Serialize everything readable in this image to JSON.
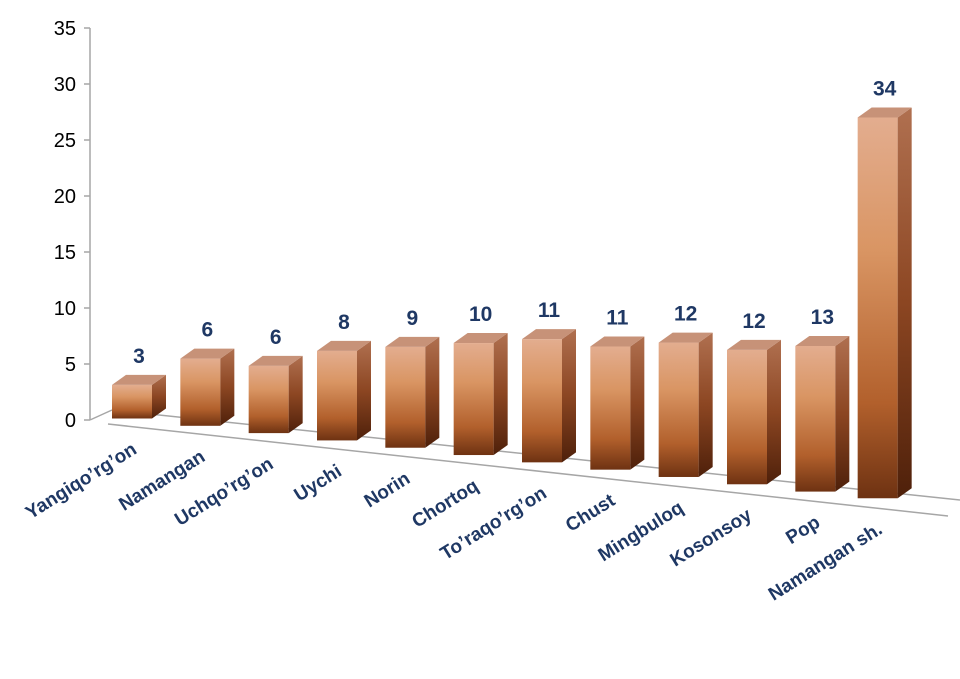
{
  "chart_data": {
    "type": "bar",
    "title": "",
    "xlabel": "",
    "ylabel": "",
    "ylim": [
      0,
      35
    ],
    "yticks": [
      0,
      5,
      10,
      15,
      20,
      25,
      30,
      35
    ],
    "categories": [
      "Yangiqo’rg’on",
      "Namangan",
      "Uchqo’rg’on",
      "Uychi",
      "Norin",
      "Chortoq",
      "To’raqo’rg’on",
      "Chust",
      "Mingbuloq",
      "Kosonsoy",
      "Pop",
      "Namangan sh."
    ],
    "values": [
      3,
      6,
      6,
      8,
      9,
      10,
      11,
      11,
      12,
      12,
      13,
      34
    ],
    "grid": false,
    "legend": "none",
    "style": "3d-perspective",
    "colors": {
      "bar_light": "#e8b08a",
      "bar_mid": "#c8743a",
      "bar_dark": "#6e3212",
      "bar_top": "#c79278",
      "bar_side": "#8c4622",
      "value_label": "#1f3864",
      "category_label": "#1f3864",
      "axis": "#a6a6a6"
    }
  }
}
